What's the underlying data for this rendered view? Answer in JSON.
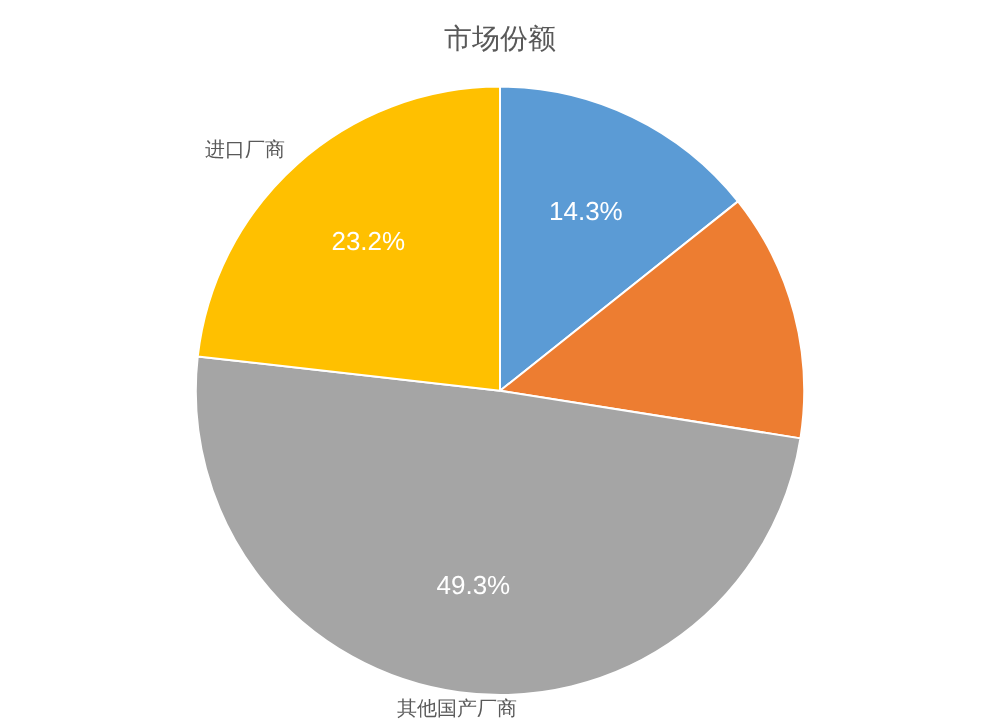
{
  "chart_data": {
    "type": "pie",
    "title": "市场份额",
    "categories": [
      null,
      null,
      "其他国产厂商",
      "进口厂商"
    ],
    "values": [
      14.3,
      13.2,
      49.3,
      23.2
    ],
    "colors": [
      "#5b9bd5",
      "#ed7d31",
      "#a5a5a5",
      "#ffc000"
    ],
    "value_labels": [
      "14.3%",
      null,
      "49.3%",
      "23.2%"
    ],
    "legend": false
  }
}
